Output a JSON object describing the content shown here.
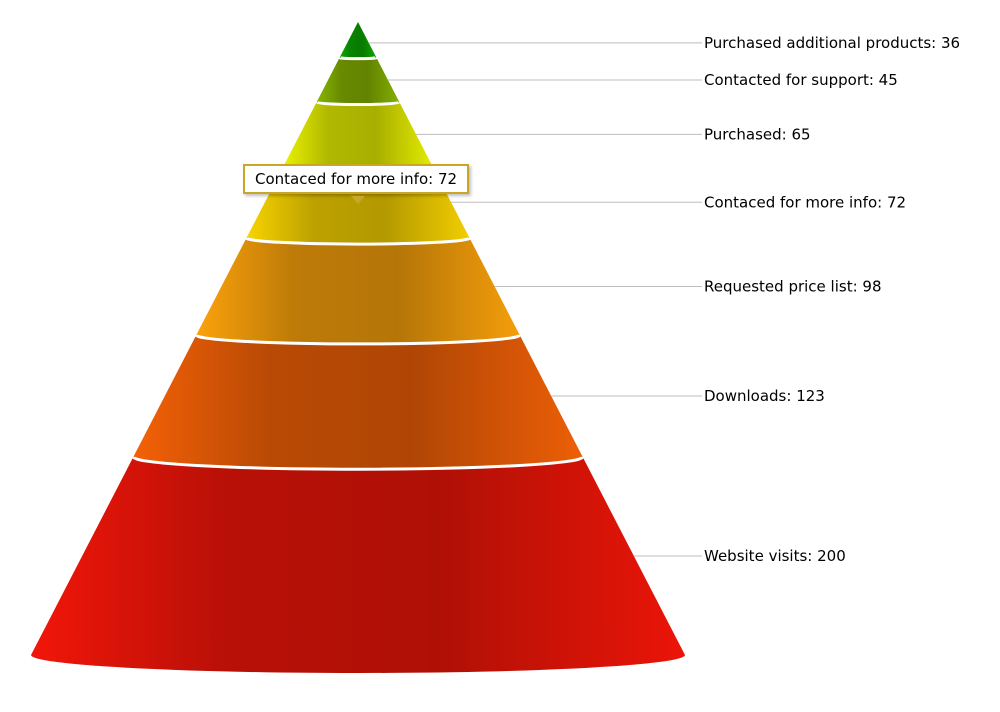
{
  "chart_data": {
    "type": "pyramid",
    "stages": [
      {
        "name": "Purchased additional products",
        "value": 36,
        "label": "Purchased additional products: 36",
        "color": "#0a9e00"
      },
      {
        "name": "Contacted for support",
        "value": 45,
        "label": "Contacted for support: 45",
        "color": "#7ea800"
      },
      {
        "name": "Purchased",
        "value": 65,
        "label": "Purchased: 65",
        "color": "#d8e000"
      },
      {
        "name": "Contaced for more info",
        "value": 72,
        "label": "Contaced for more info: 72",
        "color": "#e6c400"
      },
      {
        "name": "Requested price list",
        "value": 98,
        "label": "Requested price list: 98",
        "color": "#e8960a"
      },
      {
        "name": "Downloads",
        "value": 123,
        "label": "Downloads: 123",
        "color": "#e25a06"
      },
      {
        "name": "Website visits",
        "value": 200,
        "label": "Website visits: 200",
        "color": "#e01408"
      }
    ]
  },
  "tooltip": {
    "text": "Contaced for more info: 72"
  }
}
